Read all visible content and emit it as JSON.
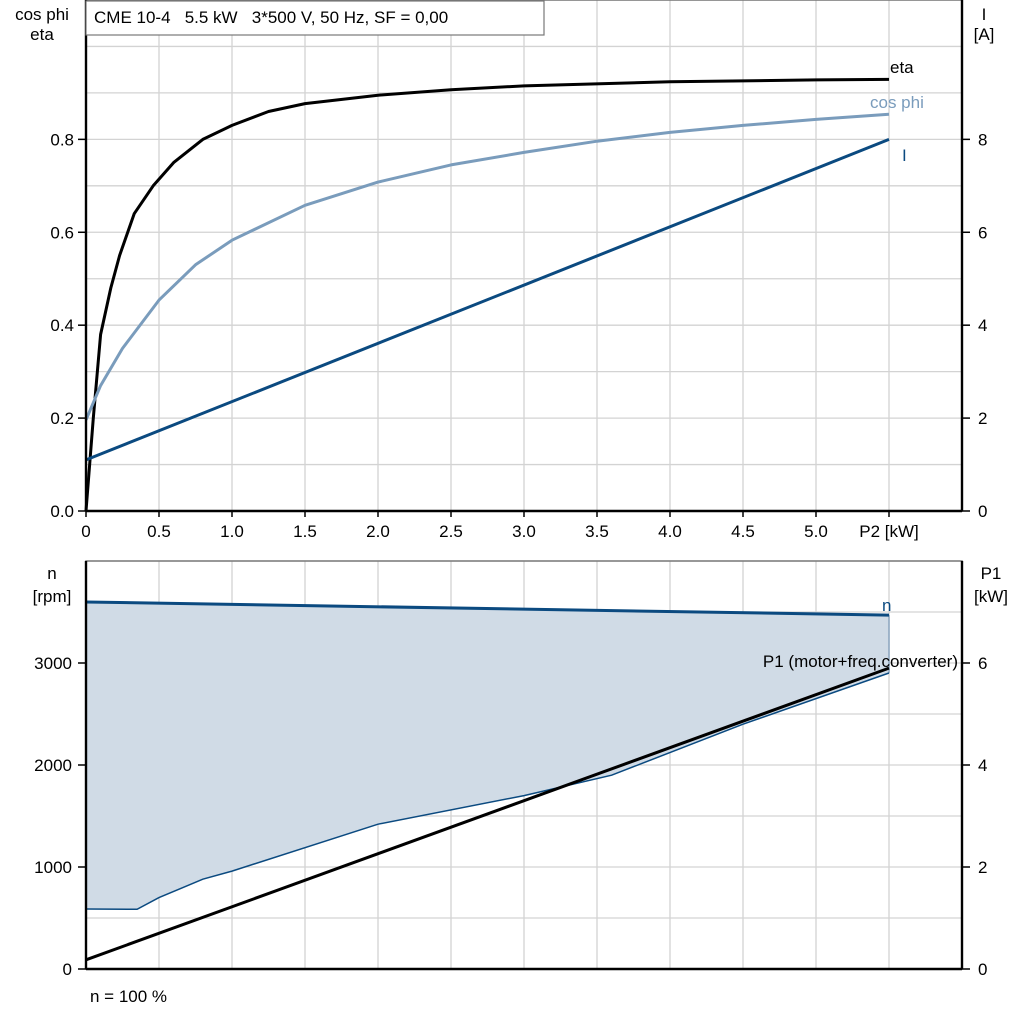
{
  "colors": {
    "eta": "#000000",
    "cos_phi": "#7a9cbc",
    "I": "#0b4a80",
    "n": "#0b4a80",
    "n_area": "#d0dbe6",
    "P1": "#000000",
    "grid": "#d3d3d3"
  },
  "chart_data": [
    {
      "type": "line",
      "title": "CME 10-4   5.5 kW   3*500 V, 50 Hz, SF = 0,00",
      "xlabel": "P2 [kW]",
      "ylabel_left": [
        "cos phi",
        "eta"
      ],
      "ylabel_right": [
        "I",
        "[A]"
      ],
      "xlim": [
        0,
        6
      ],
      "ylim_left": [
        0,
        1.1
      ],
      "ylim_right": [
        0,
        11
      ],
      "x_ticks": [
        "0",
        "0.5",
        "1.0",
        "1.5",
        "2.0",
        "2.5",
        "3.0",
        "3.5",
        "4.0",
        "4.5",
        "5.0",
        "P2 [kW]"
      ],
      "y_left_ticks": [
        "0.0",
        "0.2",
        "0.4",
        "0.6",
        "0.8"
      ],
      "y_right_ticks": [
        "0",
        "2",
        "4",
        "6",
        "8"
      ],
      "grid": true,
      "series": [
        {
          "name": "eta",
          "axis": "left",
          "x": [
            0,
            0.05,
            0.1,
            0.17,
            0.23,
            0.33,
            0.46,
            0.6,
            0.8,
            1.0,
            1.25,
            1.5,
            2.0,
            2.5,
            3.0,
            4.0,
            5.0,
            5.5
          ],
          "y": [
            0,
            0.2,
            0.38,
            0.48,
            0.55,
            0.64,
            0.7,
            0.75,
            0.8,
            0.83,
            0.86,
            0.877,
            0.895,
            0.907,
            0.915,
            0.924,
            0.928,
            0.929
          ]
        },
        {
          "name": "cos phi",
          "axis": "left",
          "x": [
            0,
            0.1,
            0.25,
            0.5,
            0.75,
            1.0,
            1.5,
            2.0,
            2.5,
            3.0,
            3.5,
            4.0,
            4.5,
            5.0,
            5.5
          ],
          "y": [
            0.196,
            0.27,
            0.35,
            0.454,
            0.53,
            0.583,
            0.658,
            0.708,
            0.745,
            0.772,
            0.796,
            0.815,
            0.83,
            0.843,
            0.854
          ]
        },
        {
          "name": "I",
          "axis": "right",
          "x": [
            0,
            5.5
          ],
          "y": [
            1.1,
            8.0
          ]
        }
      ]
    },
    {
      "type": "area",
      "xlim": [
        0,
        6
      ],
      "ylabel_left": [
        "n",
        "[rpm]"
      ],
      "ylabel_right": [
        "P1",
        "[kW]"
      ],
      "ylim_left": [
        0,
        4000
      ],
      "ylim_right": [
        0,
        8
      ],
      "y_left_ticks": [
        "0",
        "1000",
        "2000",
        "3000"
      ],
      "y_right_ticks": [
        "0",
        "2",
        "4",
        "6"
      ],
      "footnote": "n = 100 %",
      "grid": true,
      "series": [
        {
          "name": "n",
          "axis": "left",
          "x": [
            0,
            5.5
          ],
          "y": [
            3598,
            3470
          ]
        },
        {
          "axis": "left",
          "role": "area-lower-edge",
          "x": [
            0,
            0.35,
            0.5,
            0.8,
            1.0,
            2.0,
            3.0,
            3.6,
            4.5,
            5.5
          ],
          "y": [
            588,
            585,
            700,
            880,
            960,
            1420,
            1700,
            1900,
            2400,
            2902
          ]
        },
        {
          "name": "P1 (motor+freq.converter)",
          "axis": "right",
          "x": [
            0,
            5.5
          ],
          "y": [
            0.18,
            5.9
          ]
        }
      ]
    }
  ]
}
